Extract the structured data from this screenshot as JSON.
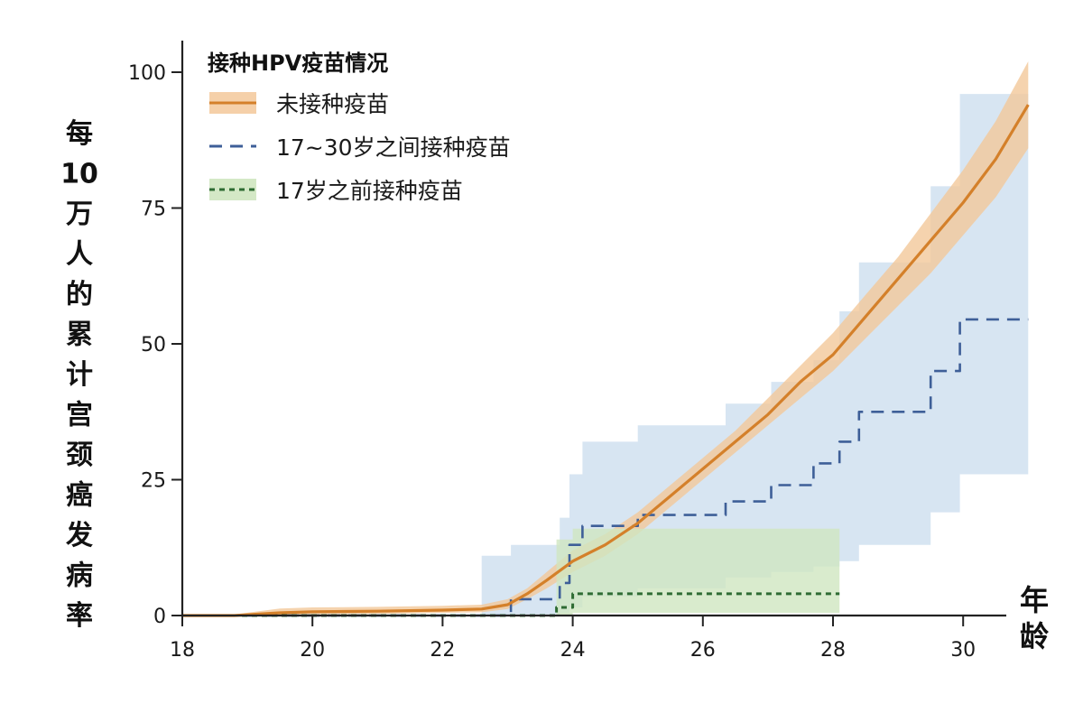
{
  "chart_data": {
    "type": "line",
    "title": "",
    "xlabel": "年龄",
    "ylabel": "每10万人的累计宫颈癌发病率",
    "xlim": [
      18,
      31
    ],
    "ylim": [
      0,
      105
    ],
    "x_ticks": [
      18,
      20,
      22,
      24,
      26,
      28,
      30
    ],
    "x_tick_labels": [
      "18",
      "20",
      "22",
      "24",
      "26",
      "28",
      "30"
    ],
    "y_ticks": [
      0,
      25,
      50,
      75,
      100
    ],
    "y_tick_labels": [
      "0",
      "25",
      "50",
      "75",
      "100"
    ],
    "grid": false,
    "legend": {
      "title": "接种HPV疫苗情况",
      "position": "top-left"
    },
    "colors": {
      "unvaccinated": "#d4802a",
      "unvaccinated_band": "#f3c89a",
      "vax_17_30": "#3e5f98",
      "vax_17_30_band": "#c9dced",
      "vax_before_17": "#2e6b33",
      "vax_before_17_band": "#cfe6c0"
    },
    "series": [
      {
        "name": "未接种疫苗",
        "key": "unvaccinated",
        "style": "solid",
        "x": [
          18,
          18.8,
          19.5,
          20,
          21,
          22,
          22.6,
          23,
          23.3,
          23.6,
          24,
          24.5,
          25,
          25.5,
          26,
          26.5,
          27,
          27.5,
          28,
          28.5,
          29,
          29.5,
          30,
          30.5,
          31
        ],
        "y": [
          0,
          0,
          0.5,
          0.7,
          0.8,
          1,
          1.2,
          2,
          4,
          6.5,
          10,
          13,
          17,
          22,
          27,
          32,
          37,
          43,
          48,
          55,
          62,
          69,
          76,
          84,
          94
        ],
        "lower": [
          0,
          0,
          0.1,
          0.2,
          0.3,
          0.5,
          0.6,
          1.2,
          3,
          5,
          8,
          11,
          15,
          20,
          25,
          30,
          35,
          40,
          45,
          51,
          57,
          63,
          70,
          77,
          86
        ],
        "upper": [
          0,
          0.2,
          1.3,
          1.5,
          1.6,
          1.8,
          2,
          3,
          5,
          8,
          12,
          15,
          19,
          24,
          29,
          34,
          40,
          46,
          52,
          59,
          66,
          74,
          82,
          91,
          102
        ]
      },
      {
        "name": "17~30岁之间接种疫苗",
        "key": "vax_17_30",
        "style": "dashed",
        "step": true,
        "x": [
          18,
          22.6,
          23.05,
          23.8,
          23.95,
          24.15,
          25.0,
          26.35,
          27.05,
          27.7,
          28.1,
          28.4,
          29.5,
          29.95,
          31
        ],
        "y": [
          0,
          0,
          3,
          6,
          13,
          16.5,
          18.5,
          21,
          24,
          28,
          32,
          37.5,
          45,
          54.5,
          54.5
        ],
        "lower": [
          0,
          0,
          0.2,
          0.5,
          1.5,
          3.5,
          5,
          7,
          8,
          9,
          10,
          13,
          19,
          26,
          31
        ],
        "upper": [
          0,
          11,
          13,
          18,
          26,
          32,
          35,
          39,
          43,
          47,
          56,
          65,
          79,
          96,
          96
        ]
      },
      {
        "name": "17岁之前接种疫苗",
        "key": "vax_before_17",
        "style": "dotted",
        "step": true,
        "x": [
          18,
          23.65,
          23.75,
          24.0,
          28.1
        ],
        "y": [
          0,
          0,
          1.5,
          4,
          4
        ],
        "lower": [
          0,
          0,
          0.1,
          0.5,
          0.5
        ],
        "upper": [
          0,
          0,
          14,
          16,
          16
        ]
      }
    ]
  }
}
